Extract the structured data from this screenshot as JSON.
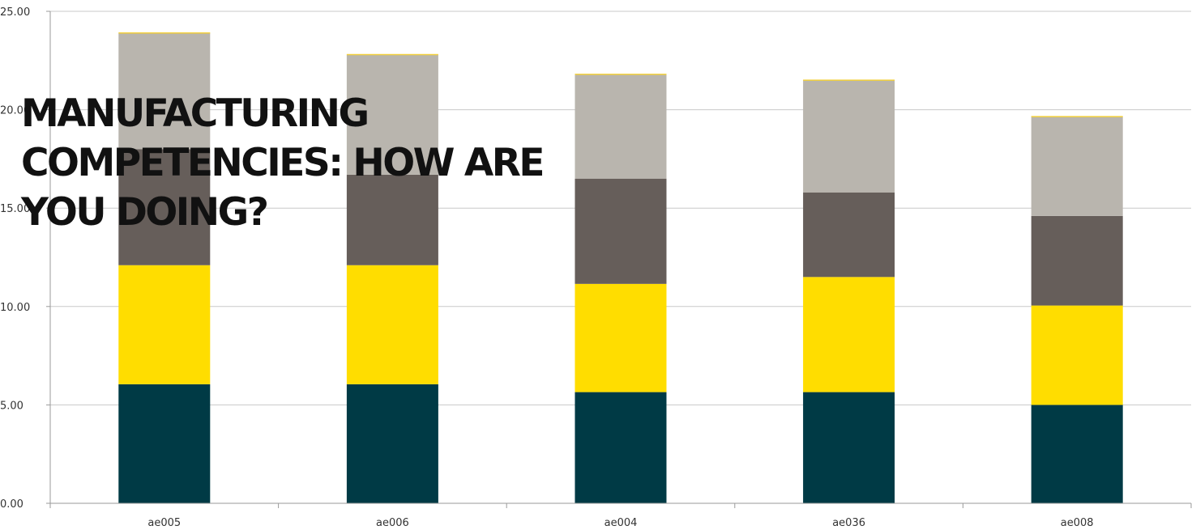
{
  "headline": {
    "line1": "MANUFACTURING",
    "line2": "COMPETENCIES: HOW ARE",
    "line3": "YOU DOING?"
  },
  "chart_data": {
    "type": "bar",
    "stacked": true,
    "categories": [
      "ae005",
      "ae006",
      "ae004",
      "ae036",
      "ae008"
    ],
    "series": [
      {
        "values": [
          6.05,
          6.05,
          5.65,
          5.65,
          5.0
        ],
        "color": "#003a45"
      },
      {
        "values": [
          6.05,
          6.05,
          5.5,
          5.85,
          5.05
        ],
        "color": "#ffdd00"
      },
      {
        "values": [
          5.9,
          4.6,
          5.35,
          4.3,
          4.55
        ],
        "color": "#665e5a"
      },
      {
        "values": [
          5.9,
          6.1,
          5.3,
          5.7,
          5.05
        ],
        "color": "#b9b5ae"
      }
    ],
    "yticks": [
      "0.00",
      "5.00",
      "10.00",
      "15.00",
      "20.00",
      "25.00"
    ],
    "ylim": [
      0,
      25
    ],
    "grid": true,
    "legend": "none"
  }
}
